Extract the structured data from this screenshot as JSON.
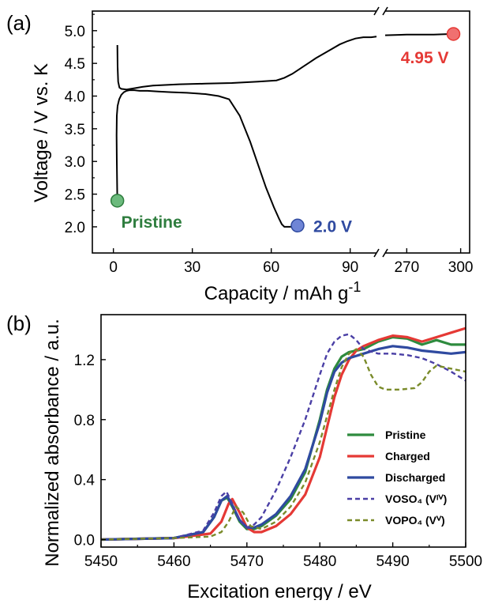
{
  "chart_data": [
    {
      "panel_label": "(a)",
      "type": "line",
      "xlabel": "Capacity / mAh g",
      "xlabel_superscript": "-1",
      "ylabel": "Voltage / V vs. K",
      "xlim_segment_1": [
        -8,
        100
      ],
      "xlim_segment_2": [
        258,
        305
      ],
      "ylim": [
        1.6,
        5.3
      ],
      "x_ticks_segment_1": [
        "0",
        "30",
        "60",
        "90"
      ],
      "x_ticks_segment_2": [
        "270",
        "300"
      ],
      "y_ticks": [
        "2.0",
        "2.5",
        "3.0",
        "3.5",
        "4.0",
        "4.5",
        "5.0"
      ],
      "axis_break": true,
      "series": [
        {
          "color": "#000000",
          "segment": 1,
          "x": [
            1.5,
            1.3,
            1.2,
            1.3,
            1.6,
            2.2,
            3,
            4,
            5,
            6,
            8,
            10,
            13,
            17,
            22,
            28,
            35,
            40,
            44,
            48,
            52,
            55,
            58,
            61,
            63,
            64,
            65,
            70
          ],
          "y": [
            2.35,
            3.0,
            3.4,
            3.7,
            3.85,
            3.95,
            4.02,
            4.06,
            4.08,
            4.09,
            4.09,
            4.08,
            4.08,
            4.07,
            4.06,
            4.05,
            4.03,
            4.0,
            3.95,
            3.7,
            3.3,
            2.95,
            2.6,
            2.3,
            2.12,
            2.04,
            2.0,
            2.0
          ]
        },
        {
          "color": "#000000",
          "segment": 1,
          "x": [
            1.5,
            1.6,
            1.8,
            2.3,
            3,
            5,
            8,
            11,
            15,
            25,
            35,
            45,
            55,
            62,
            65,
            68,
            71,
            74,
            77,
            80,
            83,
            86,
            89,
            92,
            95,
            98,
            100
          ],
          "y": [
            4.78,
            4.45,
            4.22,
            4.13,
            4.11,
            4.1,
            4.12,
            4.14,
            4.16,
            4.18,
            4.19,
            4.2,
            4.22,
            4.24,
            4.28,
            4.34,
            4.42,
            4.5,
            4.58,
            4.65,
            4.72,
            4.79,
            4.84,
            4.88,
            4.9,
            4.9,
            4.91
          ]
        },
        {
          "color": "#000000",
          "segment": 2,
          "x": [
            258,
            270,
            285,
            296
          ],
          "y": [
            4.93,
            4.94,
            4.94,
            4.95
          ]
        }
      ],
      "markers": [
        {
          "label": "Pristine",
          "x": 1.5,
          "y": 2.4,
          "segment": 1,
          "color": "#2e7d3e",
          "fill": "#6cba7d"
        },
        {
          "label": "2.0 V",
          "x": 70,
          "y": 2.02,
          "segment": 1,
          "color": "#2f4aa0",
          "fill": "#6f85d6"
        },
        {
          "label": "4.95 V",
          "x": 296,
          "y": 4.95,
          "segment": 2,
          "color": "#e53935",
          "fill": "#f07070"
        }
      ]
    },
    {
      "panel_label": "(b)",
      "type": "line",
      "xlabel": "Excitation energy / eV",
      "ylabel": "Normalized absorbance / a.u.",
      "xlim": [
        5450,
        5500
      ],
      "ylim": [
        -0.05,
        1.5
      ],
      "x_ticks": [
        "5450",
        "5460",
        "5470",
        "5480",
        "5490",
        "5500"
      ],
      "y_ticks": [
        "0.0",
        "0.4",
        "0.8",
        "1.2"
      ],
      "legend_position": "lower-right",
      "series": [
        {
          "name": "Pristine",
          "color": "#2e8b3e",
          "dashed": false,
          "x": [
            5450,
            5460,
            5464,
            5465.5,
            5466.5,
            5467.3,
            5468,
            5469,
            5470,
            5471,
            5472,
            5474,
            5476,
            5478,
            5480,
            5481,
            5482,
            5483,
            5484,
            5486,
            5488,
            5490,
            5492,
            5494,
            5496,
            5498,
            5500
          ],
          "y": [
            0.0,
            0.01,
            0.05,
            0.15,
            0.26,
            0.28,
            0.22,
            0.12,
            0.07,
            0.07,
            0.09,
            0.16,
            0.27,
            0.45,
            0.8,
            1.0,
            1.14,
            1.22,
            1.25,
            1.27,
            1.32,
            1.35,
            1.34,
            1.3,
            1.33,
            1.3,
            1.3
          ]
        },
        {
          "name": "Charged",
          "color": "#e53935",
          "dashed": false,
          "x": [
            5450,
            5460,
            5465,
            5466.5,
            5467.5,
            5468,
            5469,
            5470,
            5471,
            5472,
            5474,
            5476,
            5478,
            5480,
            5481,
            5482,
            5483,
            5484,
            5485,
            5486,
            5488,
            5490,
            5492,
            5494,
            5496,
            5498,
            5500
          ],
          "y": [
            0.0,
            0.01,
            0.04,
            0.12,
            0.24,
            0.27,
            0.18,
            0.08,
            0.05,
            0.05,
            0.09,
            0.17,
            0.3,
            0.55,
            0.75,
            0.95,
            1.1,
            1.2,
            1.26,
            1.29,
            1.33,
            1.36,
            1.35,
            1.32,
            1.35,
            1.38,
            1.41
          ]
        },
        {
          "name": "Discharged",
          "color": "#2f4aa0",
          "dashed": false,
          "x": [
            5450,
            5460,
            5464,
            5465.5,
            5466.5,
            5467.3,
            5468,
            5469,
            5470,
            5471,
            5472,
            5474,
            5476,
            5478,
            5480,
            5481,
            5482,
            5483,
            5484,
            5486,
            5488,
            5490,
            5492,
            5494,
            5496,
            5498,
            5500
          ],
          "y": [
            0.0,
            0.01,
            0.05,
            0.15,
            0.26,
            0.29,
            0.23,
            0.13,
            0.08,
            0.08,
            0.1,
            0.17,
            0.29,
            0.47,
            0.78,
            0.98,
            1.12,
            1.18,
            1.21,
            1.24,
            1.27,
            1.29,
            1.28,
            1.26,
            1.25,
            1.24,
            1.25
          ]
        },
        {
          "name": "VOSO₄ (Vᴵⱽ)",
          "color": "#4a3fa5",
          "dashed": true,
          "x": [
            5450,
            5460,
            5464,
            5465.5,
            5466.5,
            5467.2,
            5468,
            5469,
            5470,
            5471,
            5472,
            5474,
            5476,
            5478,
            5480,
            5481,
            5482,
            5483,
            5484,
            5485,
            5486,
            5488,
            5490,
            5492,
            5494,
            5496,
            5498,
            5500
          ],
          "y": [
            0.0,
            0.01,
            0.06,
            0.18,
            0.29,
            0.32,
            0.24,
            0.13,
            0.08,
            0.1,
            0.15,
            0.33,
            0.55,
            0.8,
            1.1,
            1.24,
            1.32,
            1.36,
            1.37,
            1.33,
            1.27,
            1.24,
            1.24,
            1.23,
            1.21,
            1.17,
            1.12,
            1.06
          ]
        },
        {
          "name": "VOPO₄ (Vⱽ)",
          "color": "#7a8b2a",
          "dashed": true,
          "x": [
            5450,
            5460,
            5465,
            5466.5,
            5467.5,
            5468.5,
            5469.5,
            5470.5,
            5472,
            5474,
            5476,
            5478,
            5480,
            5482,
            5483,
            5484,
            5485,
            5486,
            5487,
            5488,
            5489,
            5491,
            5493,
            5494,
            5495,
            5496,
            5498,
            5500
          ],
          "y": [
            0.0,
            0.01,
            0.02,
            0.05,
            0.12,
            0.22,
            0.18,
            0.09,
            0.07,
            0.12,
            0.22,
            0.38,
            0.65,
            1.0,
            1.15,
            1.24,
            1.27,
            1.22,
            1.1,
            1.02,
            1.0,
            1.0,
            1.01,
            1.05,
            1.12,
            1.16,
            1.14,
            1.12
          ]
        }
      ]
    }
  ]
}
